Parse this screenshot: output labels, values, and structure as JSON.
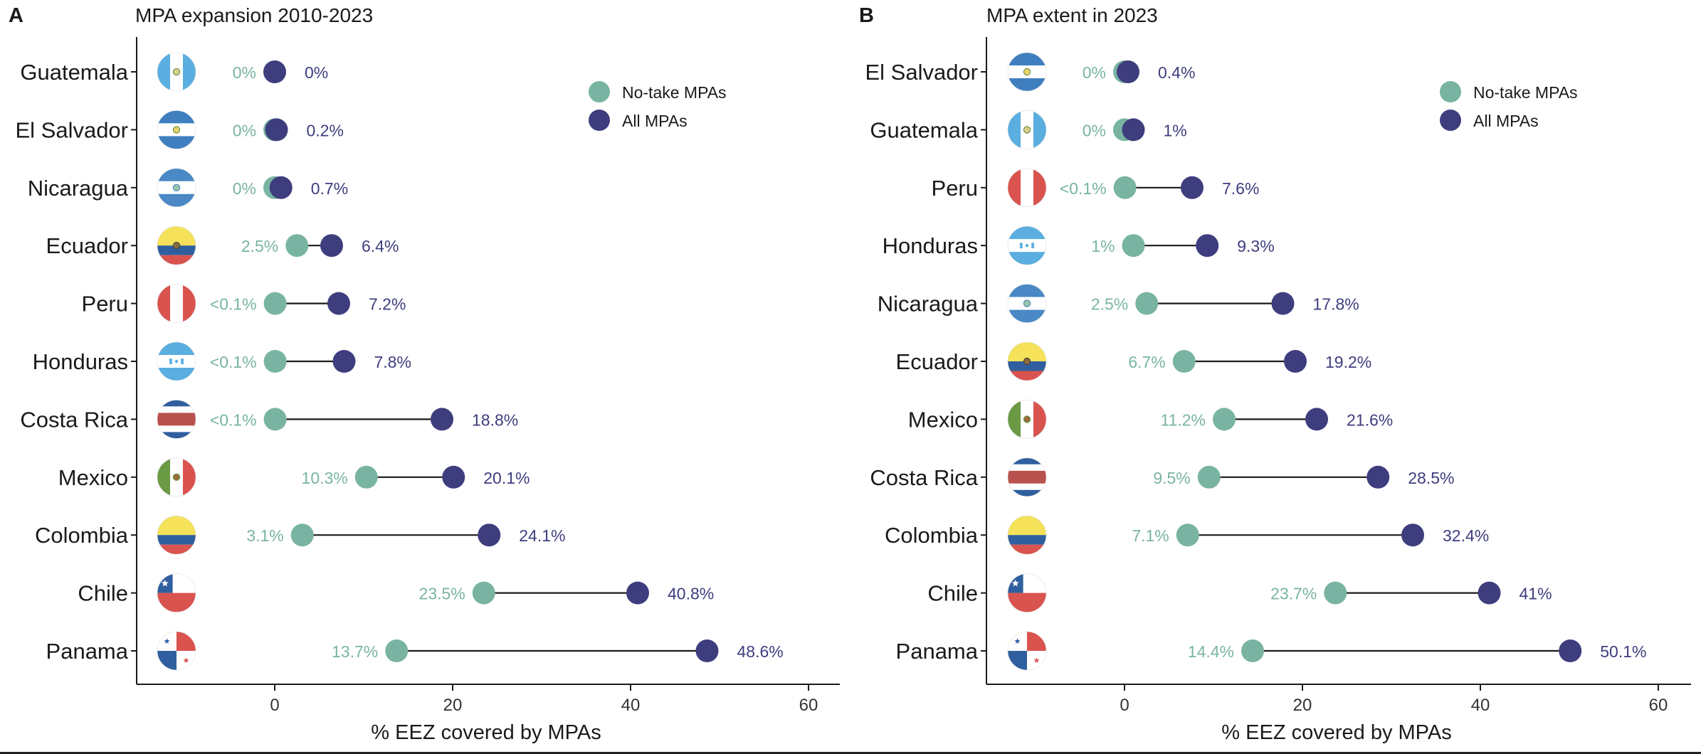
{
  "colors": {
    "no_take": "#79B4A2",
    "all_mpas": "#3E3D7E",
    "line": "#1a1a1a",
    "axis": "#1a1a1a",
    "text": "#1a1a1a"
  },
  "chart_data": [
    {
      "type": "dumbbell",
      "panel_letter": "A",
      "title": "MPA expansion 2010-2023",
      "xlabel": "% EEZ covered by MPAs",
      "ylabel": "",
      "xlim": [
        -15,
        62
      ],
      "xticks": [
        0,
        20,
        40,
        60
      ],
      "grid": false,
      "legend": {
        "position": "top-right",
        "entries": [
          "No-take MPAs",
          "All MPAs"
        ]
      },
      "categories": [
        "Guatemala",
        "El Salvador",
        "Nicaragua",
        "Ecuador",
        "Peru",
        "Honduras",
        "Costa Rica",
        "Mexico",
        "Colombia",
        "Chile",
        "Panama"
      ],
      "flags": [
        "guatemala-flag-icon",
        "el-salvador-flag-icon",
        "nicaragua-flag-icon",
        "ecuador-flag-icon",
        "peru-flag-icon",
        "honduras-flag-icon",
        "costa-rica-flag-icon",
        "mexico-flag-icon",
        "colombia-flag-icon",
        "chile-flag-icon",
        "panama-flag-icon"
      ],
      "series": [
        {
          "name": "No-take MPAs",
          "values": [
            0,
            0,
            0,
            2.5,
            0.05,
            0.05,
            0.05,
            10.3,
            3.1,
            23.5,
            13.7
          ],
          "labels": [
            "0%",
            "0%",
            "0%",
            "2.5%",
            "<0.1%",
            "<0.1%",
            "<0.1%",
            "10.3%",
            "3.1%",
            "23.5%",
            "13.7%"
          ]
        },
        {
          "name": "All MPAs",
          "values": [
            0,
            0.2,
            0.7,
            6.4,
            7.2,
            7.8,
            18.8,
            20.1,
            24.1,
            40.8,
            48.6
          ],
          "labels": [
            "0%",
            "0.2%",
            "0.7%",
            "6.4%",
            "7.2%",
            "7.8%",
            "18.8%",
            "20.1%",
            "24.1%",
            "40.8%",
            "48.6%"
          ]
        }
      ]
    },
    {
      "type": "dumbbell",
      "panel_letter": "B",
      "title": "MPA extent in 2023",
      "xlabel": "% EEZ covered by MPAs",
      "ylabel": "",
      "xlim": [
        -15,
        63
      ],
      "xticks": [
        0,
        20,
        40,
        60
      ],
      "grid": false,
      "legend": {
        "position": "top-right",
        "entries": [
          "No-take MPAs",
          "All MPAs"
        ]
      },
      "categories": [
        "El Salvador",
        "Guatemala",
        "Peru",
        "Honduras",
        "Nicaragua",
        "Ecuador",
        "Mexico",
        "Costa Rica",
        "Colombia",
        "Chile",
        "Panama"
      ],
      "flags": [
        "el-salvador-flag-icon",
        "guatemala-flag-icon",
        "peru-flag-icon",
        "honduras-flag-icon",
        "nicaragua-flag-icon",
        "ecuador-flag-icon",
        "mexico-flag-icon",
        "costa-rica-flag-icon",
        "colombia-flag-icon",
        "chile-flag-icon",
        "panama-flag-icon"
      ],
      "series": [
        {
          "name": "No-take MPAs",
          "values": [
            0,
            0,
            0.05,
            1,
            2.5,
            6.7,
            11.2,
            9.5,
            7.1,
            23.7,
            14.4
          ],
          "labels": [
            "0%",
            "0%",
            "<0.1%",
            "1%",
            "2.5%",
            "6.7%",
            "11.2%",
            "9.5%",
            "7.1%",
            "23.7%",
            "14.4%"
          ]
        },
        {
          "name": "All MPAs",
          "values": [
            0.4,
            1,
            7.6,
            9.3,
            17.8,
            19.2,
            21.6,
            28.5,
            32.4,
            41,
            50.1
          ],
          "labels": [
            "0.4%",
            "1%",
            "7.6%",
            "9.3%",
            "17.8%",
            "19.2%",
            "21.6%",
            "28.5%",
            "32.4%",
            "41%",
            "50.1%"
          ]
        }
      ]
    }
  ]
}
